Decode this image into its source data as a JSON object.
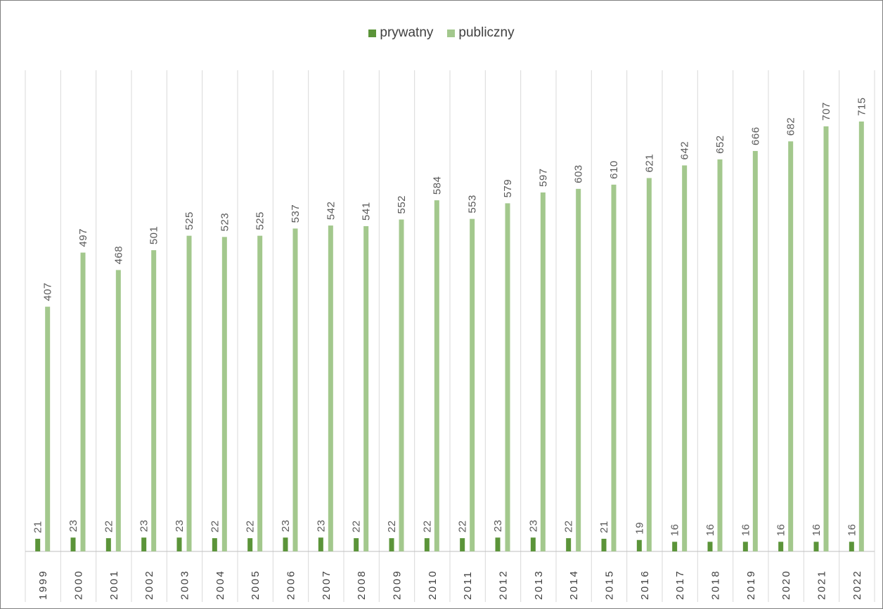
{
  "chart_data": {
    "type": "bar",
    "title": "",
    "xlabel": "",
    "ylabel": "",
    "ylim": [
      0,
      800
    ],
    "grid": "vertical",
    "legend_position": "top",
    "categories": [
      "1999",
      "2000",
      "2001",
      "2002",
      "2003",
      "2004",
      "2005",
      "2006",
      "2007",
      "2008",
      "2009",
      "2010",
      "2011",
      "2012",
      "2013",
      "2014",
      "2015",
      "2016",
      "2017",
      "2018",
      "2019",
      "2020",
      "2021",
      "2022"
    ],
    "series": [
      {
        "name": "prywatny",
        "color": "#5b9439",
        "values": [
          21,
          23,
          22,
          23,
          23,
          22,
          22,
          23,
          23,
          22,
          22,
          22,
          22,
          23,
          23,
          22,
          21,
          19,
          16,
          16,
          16,
          16,
          16,
          16
        ]
      },
      {
        "name": "publiczny",
        "color": "#a3c88d",
        "values": [
          407,
          497,
          468,
          501,
          525,
          523,
          525,
          537,
          542,
          541,
          552,
          584,
          553,
          579,
          597,
          603,
          610,
          621,
          642,
          652,
          666,
          682,
          707,
          715
        ]
      }
    ]
  }
}
